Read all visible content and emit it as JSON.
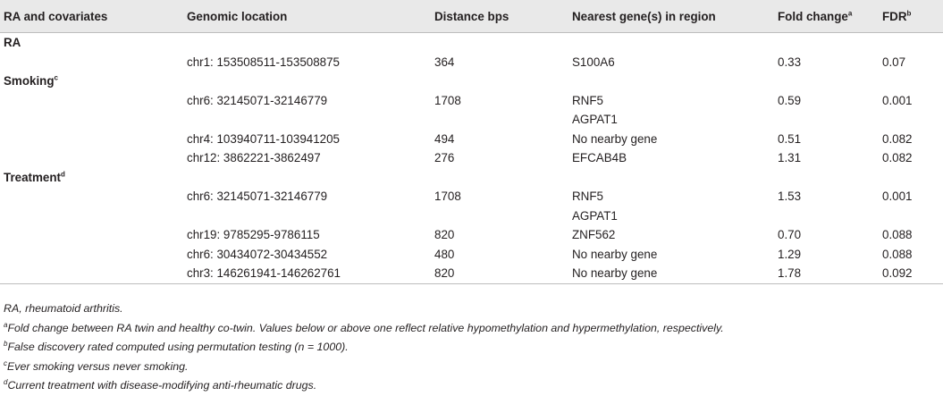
{
  "headers": {
    "col1": "RA and covariates",
    "col2": "Genomic location",
    "col3": "Distance bps",
    "col4": "Nearest gene(s) in region",
    "col5": "Fold change",
    "col5_sup": "a",
    "col6": "FDR",
    "col6_sup": "b"
  },
  "groups": {
    "ra": {
      "label": "RA",
      "sup": ""
    },
    "smoking": {
      "label": "Smoking",
      "sup": "c"
    },
    "treatment": {
      "label": "Treatment",
      "sup": "d"
    }
  },
  "rows": {
    "ra": [
      {
        "location": "chr1: 153508511-153508875",
        "distance": "364",
        "gene": "S100A6",
        "fold": "0.33",
        "fdr": "0.07"
      }
    ],
    "smoking": [
      {
        "location": "chr6: 32145071-32146779",
        "distance": "1708",
        "gene": "RNF5",
        "fold": "0.59",
        "fdr": "0.001"
      },
      {
        "location": "",
        "distance": "",
        "gene": "AGPAT1",
        "fold": "",
        "fdr": ""
      },
      {
        "location": "chr4: 103940711-103941205",
        "distance": "494",
        "gene": "No nearby gene",
        "fold": "0.51",
        "fdr": "0.082"
      },
      {
        "location": "chr12: 3862221-3862497",
        "distance": "276",
        "gene": "EFCAB4B",
        "fold": "1.31",
        "fdr": "0.082"
      }
    ],
    "treatment": [
      {
        "location": "chr6: 32145071-32146779",
        "distance": "1708",
        "gene": "RNF5",
        "fold": "1.53",
        "fdr": "0.001"
      },
      {
        "location": "",
        "distance": "",
        "gene": "AGPAT1",
        "fold": "",
        "fdr": ""
      },
      {
        "location": "chr19: 9785295-9786115",
        "distance": "820",
        "gene": "ZNF562",
        "fold": "0.70",
        "fdr": "0.088"
      },
      {
        "location": "chr6: 30434072-30434552",
        "distance": "480",
        "gene": "No nearby gene",
        "fold": "1.29",
        "fdr": "0.088"
      },
      {
        "location": "chr3: 146261941-146262761",
        "distance": "820",
        "gene": "No nearby gene",
        "fold": "1.78",
        "fdr": "0.092"
      }
    ]
  },
  "notes": {
    "n0": "RA, rheumatoid arthritis.",
    "n1_sup": "a",
    "n1": "Fold change between RA twin and healthy co-twin. Values below or above one reflect relative hypomethylation and hypermethylation, respectively.",
    "n2_sup": "b",
    "n2": "False discovery rated computed using permutation testing (n = 1000).",
    "n3_sup": "c",
    "n3": "Ever smoking versus never smoking.",
    "n4_sup": "d",
    "n4": "Current treatment with disease-modifying anti-rheumatic drugs."
  }
}
